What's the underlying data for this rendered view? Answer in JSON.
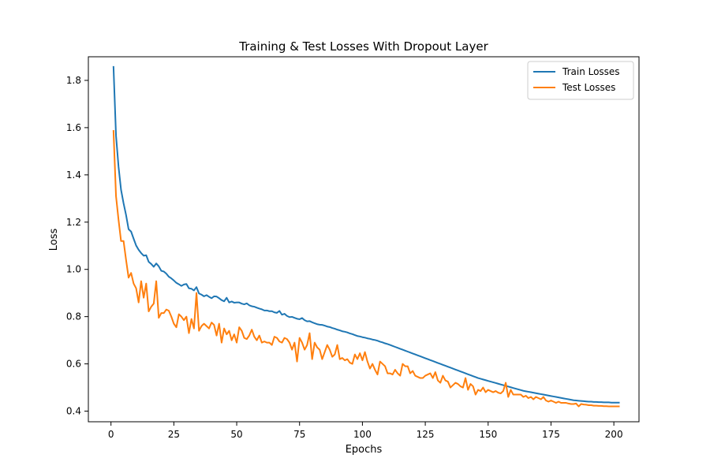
{
  "chart_data": {
    "type": "line",
    "title": "Training & Test Losses With Dropout Layer",
    "xlabel": "Epochs",
    "ylabel": "Loss",
    "xlim": [
      -9,
      210
    ],
    "ylim": [
      0.355,
      1.9
    ],
    "xticks": [
      0,
      25,
      50,
      75,
      100,
      125,
      150,
      175,
      200
    ],
    "yticks": [
      0.4,
      0.6,
      0.8,
      1.0,
      1.2,
      1.4,
      1.6,
      1.8
    ],
    "ytick_labels": [
      "0.4",
      "0.6",
      "0.8",
      "1.0",
      "1.2",
      "1.4",
      "1.6",
      "1.8"
    ],
    "grid": false,
    "legend_position": "upper right",
    "x_start": 1,
    "series": [
      {
        "name": "Train Losses",
        "color": "#1f77b4",
        "values": [
          1.857,
          1.566,
          1.435,
          1.337,
          1.28,
          1.23,
          1.17,
          1.16,
          1.13,
          1.101,
          1.083,
          1.069,
          1.058,
          1.06,
          1.032,
          1.023,
          1.011,
          1.025,
          1.013,
          0.994,
          0.991,
          0.982,
          0.969,
          0.962,
          0.953,
          0.943,
          0.937,
          0.93,
          0.936,
          0.938,
          0.92,
          0.918,
          0.911,
          0.925,
          0.898,
          0.893,
          0.886,
          0.891,
          0.884,
          0.878,
          0.886,
          0.885,
          0.878,
          0.87,
          0.865,
          0.88,
          0.86,
          0.864,
          0.859,
          0.86,
          0.86,
          0.855,
          0.852,
          0.856,
          0.848,
          0.844,
          0.842,
          0.838,
          0.834,
          0.831,
          0.826,
          0.826,
          0.823,
          0.823,
          0.818,
          0.816,
          0.824,
          0.808,
          0.812,
          0.803,
          0.798,
          0.799,
          0.795,
          0.791,
          0.789,
          0.794,
          0.785,
          0.78,
          0.781,
          0.776,
          0.772,
          0.768,
          0.766,
          0.765,
          0.762,
          0.758,
          0.756,
          0.752,
          0.749,
          0.745,
          0.742,
          0.738,
          0.736,
          0.733,
          0.729,
          0.726,
          0.722,
          0.718,
          0.716,
          0.713,
          0.711,
          0.708,
          0.706,
          0.703,
          0.701,
          0.698,
          0.694,
          0.691,
          0.687,
          0.684,
          0.68,
          0.676,
          0.672,
          0.668,
          0.664,
          0.66,
          0.656,
          0.652,
          0.648,
          0.644,
          0.64,
          0.636,
          0.632,
          0.628,
          0.624,
          0.62,
          0.616,
          0.612,
          0.608,
          0.604,
          0.6,
          0.596,
          0.592,
          0.588,
          0.584,
          0.58,
          0.576,
          0.572,
          0.568,
          0.564,
          0.56,
          0.556,
          0.552,
          0.548,
          0.544,
          0.54,
          0.537,
          0.534,
          0.531,
          0.528,
          0.525,
          0.522,
          0.519,
          0.516,
          0.513,
          0.51,
          0.507,
          0.504,
          0.501,
          0.498,
          0.495,
          0.492,
          0.489,
          0.486,
          0.484,
          0.482,
          0.48,
          0.478,
          0.476,
          0.474,
          0.472,
          0.47,
          0.468,
          0.466,
          0.464,
          0.462,
          0.46,
          0.458,
          0.456,
          0.454,
          0.452,
          0.45,
          0.448,
          0.446,
          0.445,
          0.444,
          0.443,
          0.442,
          0.441,
          0.44,
          0.44,
          0.439,
          0.439,
          0.438,
          0.438,
          0.437,
          0.437,
          0.437,
          0.436,
          0.436,
          0.436,
          0.436
        ]
      },
      {
        "name": "Test Losses",
        "color": "#ff7f0e",
        "values": [
          1.586,
          1.31,
          1.21,
          1.12,
          1.12,
          1.04,
          0.965,
          0.985,
          0.94,
          0.92,
          0.86,
          0.95,
          0.88,
          0.94,
          0.822,
          0.842,
          0.855,
          0.95,
          0.795,
          0.815,
          0.815,
          0.83,
          0.825,
          0.8,
          0.77,
          0.755,
          0.81,
          0.8,
          0.785,
          0.8,
          0.73,
          0.79,
          0.75,
          0.9,
          0.74,
          0.76,
          0.77,
          0.76,
          0.75,
          0.775,
          0.765,
          0.72,
          0.77,
          0.69,
          0.75,
          0.725,
          0.74,
          0.7,
          0.725,
          0.69,
          0.755,
          0.74,
          0.71,
          0.705,
          0.72,
          0.745,
          0.715,
          0.7,
          0.72,
          0.69,
          0.695,
          0.69,
          0.69,
          0.68,
          0.715,
          0.71,
          0.695,
          0.69,
          0.71,
          0.705,
          0.69,
          0.66,
          0.69,
          0.61,
          0.71,
          0.69,
          0.66,
          0.68,
          0.73,
          0.62,
          0.69,
          0.67,
          0.66,
          0.62,
          0.65,
          0.68,
          0.66,
          0.63,
          0.64,
          0.68,
          0.62,
          0.625,
          0.615,
          0.62,
          0.605,
          0.6,
          0.64,
          0.62,
          0.645,
          0.615,
          0.65,
          0.61,
          0.58,
          0.6,
          0.575,
          0.555,
          0.61,
          0.6,
          0.59,
          0.56,
          0.56,
          0.555,
          0.575,
          0.56,
          0.55,
          0.6,
          0.59,
          0.59,
          0.56,
          0.57,
          0.55,
          0.545,
          0.54,
          0.54,
          0.55,
          0.555,
          0.56,
          0.54,
          0.565,
          0.53,
          0.52,
          0.55,
          0.53,
          0.525,
          0.5,
          0.51,
          0.52,
          0.515,
          0.505,
          0.5,
          0.54,
          0.49,
          0.515,
          0.505,
          0.47,
          0.49,
          0.485,
          0.5,
          0.48,
          0.49,
          0.485,
          0.48,
          0.485,
          0.478,
          0.475,
          0.485,
          0.52,
          0.46,
          0.49,
          0.47,
          0.47,
          0.47,
          0.47,
          0.46,
          0.465,
          0.455,
          0.46,
          0.45,
          0.46,
          0.455,
          0.45,
          0.46,
          0.445,
          0.44,
          0.445,
          0.44,
          0.435,
          0.44,
          0.435,
          0.435,
          0.435,
          0.432,
          0.43,
          0.43,
          0.432,
          0.42,
          0.43,
          0.428,
          0.427,
          0.425,
          0.425,
          0.423,
          0.423,
          0.422,
          0.422,
          0.421,
          0.421,
          0.42,
          0.42,
          0.42,
          0.42,
          0.42
        ]
      }
    ]
  }
}
